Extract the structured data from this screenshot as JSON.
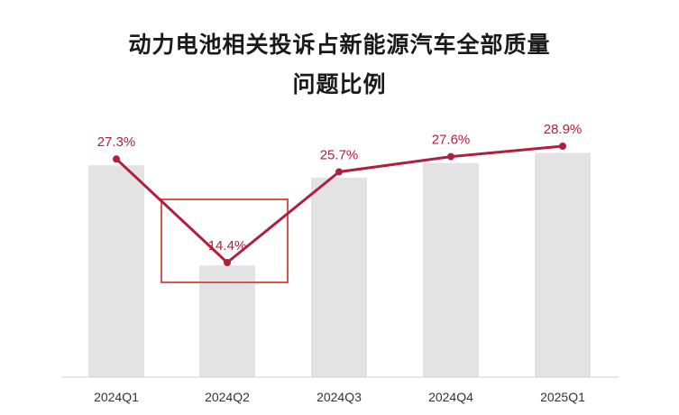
{
  "title": {
    "line1": "动力电池相关投诉占新能源汽车全部质量",
    "line2": "问题比例"
  },
  "colors": {
    "bar": "#e3e3e3",
    "line": "#b21e3c",
    "label": "#b21e3c",
    "highlight_box": "#d9534f",
    "axis": "#d0d0d0"
  },
  "chart_data": {
    "type": "line",
    "categories": [
      "2024Q1",
      "2024Q2",
      "2024Q3",
      "2024Q4",
      "2025Q1"
    ],
    "values": [
      27.3,
      14.4,
      25.7,
      27.6,
      28.9
    ],
    "labels": [
      "27.3%",
      "14.4%",
      "25.7%",
      "27.6%",
      "28.9%"
    ],
    "highlight_category": "2024Q2",
    "grid": false,
    "legend": "none"
  }
}
